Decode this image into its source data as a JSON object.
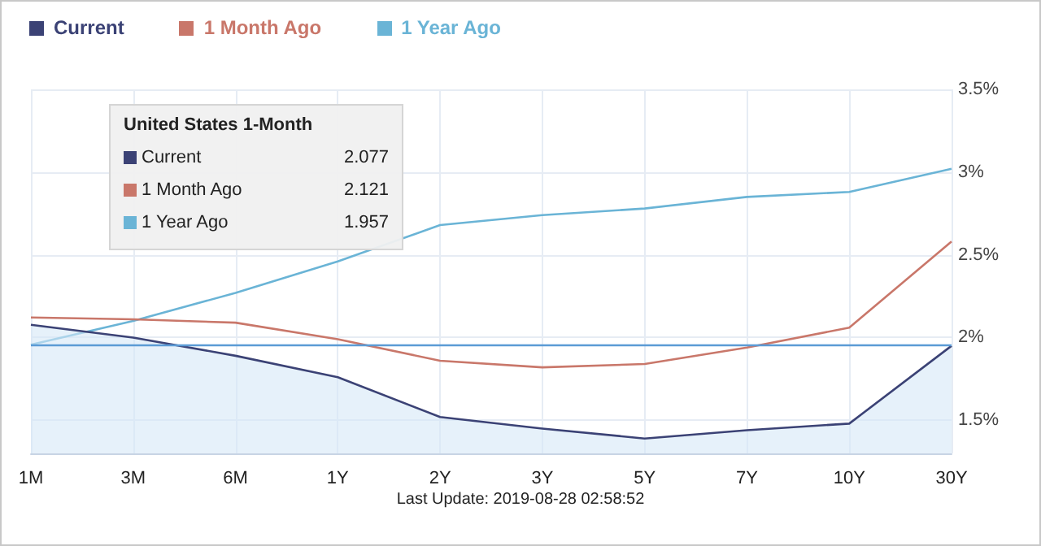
{
  "chart_data": {
    "type": "line",
    "categories": [
      "1M",
      "3M",
      "6M",
      "1Y",
      "2Y",
      "3Y",
      "5Y",
      "7Y",
      "10Y",
      "30Y"
    ],
    "series": [
      {
        "name": "Current",
        "type": "area",
        "color": "#3b4275",
        "values": [
          2.077,
          2.0,
          1.89,
          1.76,
          1.52,
          1.45,
          1.39,
          1.44,
          1.48,
          1.95
        ]
      },
      {
        "name": "1 Month Ago",
        "color": "#c9776a",
        "values": [
          2.121,
          2.11,
          2.09,
          1.99,
          1.86,
          1.82,
          1.84,
          1.94,
          2.06,
          2.58
        ]
      },
      {
        "name": "1 Year Ago",
        "color": "#6ab4d6",
        "values": [
          1.957,
          2.1,
          2.27,
          2.46,
          2.68,
          2.74,
          2.78,
          2.85,
          2.88,
          3.02
        ]
      }
    ],
    "ylim": [
      1.3,
      3.5
    ],
    "yticks": [
      {
        "value": 1.5,
        "label": "1.5%"
      },
      {
        "value": 2,
        "label": "2%"
      },
      {
        "value": 2.5,
        "label": "2.5%"
      },
      {
        "value": 3,
        "label": "3%"
      },
      {
        "value": 3.5,
        "label": "3.5%"
      }
    ],
    "ref_lines": [
      {
        "axis": "y",
        "value": 1.957,
        "color": "#5b9bd5"
      }
    ],
    "annotations": [
      "United States 1-Month",
      "2.077",
      "2.121",
      "1.957",
      "Last Update: 2019-08-28 02:58:52"
    ],
    "grid": true,
    "legend": "top left",
    "marker": "none",
    "line_style": "solid"
  }
}
